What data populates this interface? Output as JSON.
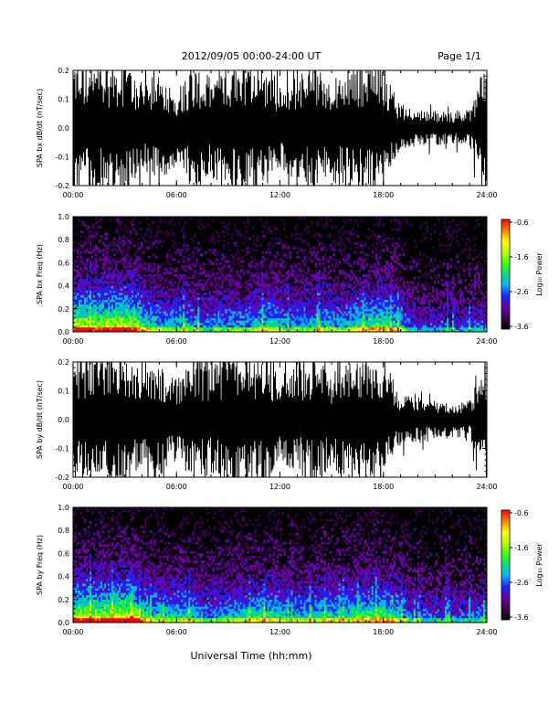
{
  "header": {
    "title": "2012/09/05  00:00-24:00 UT",
    "page": "Page 1/1"
  },
  "x_axis_label": "Universal Time (hh:mm)",
  "colors": {
    "trace": "#000000",
    "spectrogram_background": "#000000",
    "colormap": [
      "#000000",
      "#3a0050",
      "#6a00a8",
      "#2020ff",
      "#00b0ff",
      "#00e080",
      "#40ff00",
      "#c0ff00",
      "#ffff00",
      "#ff8000",
      "#ff0000"
    ]
  },
  "chart_data": [
    {
      "type": "line",
      "ylabel": "SPA bx dB/dt (nT/sec)",
      "xlim": [
        0,
        24
      ],
      "ylim": [
        -0.2,
        0.2
      ],
      "x_ticks": [
        "00:00",
        "06:00",
        "12:00",
        "18:00",
        "24:00"
      ],
      "y_ticks": [
        "-0.2",
        "-0.1",
        "0.0",
        "0.1",
        "0.2"
      ],
      "series": [
        {
          "x": [
            0,
            1,
            2,
            3,
            4,
            5,
            6,
            7,
            8,
            9,
            10,
            11,
            12,
            13,
            14,
            15,
            16,
            17,
            18,
            19,
            20,
            21,
            22,
            23,
            24
          ],
          "envelope": [
            0.2,
            0.2,
            0.2,
            0.2,
            0.15,
            0.17,
            0.12,
            0.2,
            0.16,
            0.2,
            0.2,
            0.2,
            0.13,
            0.17,
            0.2,
            0.15,
            0.2,
            0.2,
            0.2,
            0.07,
            0.06,
            0.055,
            0.05,
            0.06,
            0.2
          ]
        }
      ]
    },
    {
      "type": "heatmap",
      "ylabel": "SPA bx Freq (Hz)",
      "xlim": [
        0,
        24
      ],
      "ylim": [
        0.0,
        1.0
      ],
      "x_ticks": [
        "00:00",
        "06:00",
        "12:00",
        "18:00",
        "24:00"
      ],
      "y_ticks": [
        "0.0",
        "0.2",
        "0.4",
        "0.6",
        "0.8",
        "1.0"
      ],
      "colorbar": {
        "label": "Log₁₀ Power",
        "range": [
          -3.6,
          -0.6
        ],
        "ticks": [
          "-0.6",
          "-1.6",
          "-2.6",
          "-3.6"
        ]
      },
      "hour_activity": [
        0.9,
        0.85,
        0.95,
        0.9,
        0.6,
        0.55,
        0.6,
        0.45,
        0.5,
        0.55,
        0.6,
        0.65,
        0.5,
        0.55,
        0.6,
        0.55,
        0.65,
        0.75,
        0.7,
        0.4,
        0.35,
        0.35,
        0.35,
        0.4
      ]
    },
    {
      "type": "line",
      "ylabel": "SPA by dB/dt (nT/sec)",
      "xlim": [
        0,
        24
      ],
      "ylim": [
        -0.2,
        0.2
      ],
      "x_ticks": [
        "00:00",
        "06:00",
        "12:00",
        "18:00",
        "24:00"
      ],
      "y_ticks": [
        "-0.2",
        "-0.1",
        "0.0",
        "0.1",
        "0.2"
      ],
      "series": [
        {
          "x": [
            0,
            1,
            2,
            3,
            4,
            5,
            6,
            7,
            8,
            9,
            10,
            11,
            12,
            13,
            14,
            15,
            16,
            17,
            18,
            19,
            20,
            21,
            22,
            23,
            24
          ],
          "envelope": [
            0.2,
            0.2,
            0.2,
            0.2,
            0.15,
            0.18,
            0.13,
            0.2,
            0.17,
            0.2,
            0.2,
            0.2,
            0.14,
            0.17,
            0.2,
            0.15,
            0.2,
            0.2,
            0.2,
            0.08,
            0.07,
            0.06,
            0.055,
            0.06,
            0.2
          ]
        }
      ]
    },
    {
      "type": "heatmap",
      "ylabel": "SPA by Freq (Hz)",
      "xlim": [
        0,
        24
      ],
      "ylim": [
        0.0,
        1.0
      ],
      "x_ticks": [
        "00:00",
        "06:00",
        "12:00",
        "18:00",
        "24:00"
      ],
      "y_ticks": [
        "0.0",
        "0.2",
        "0.4",
        "0.6",
        "0.8",
        "1.0"
      ],
      "colorbar": {
        "label": "Log₁₀ Power",
        "range": [
          -3.6,
          -0.6
        ],
        "ticks": [
          "-0.6",
          "-1.6",
          "-2.6",
          "-3.6"
        ]
      },
      "hour_activity": [
        0.9,
        0.9,
        0.95,
        0.9,
        0.65,
        0.6,
        0.65,
        0.5,
        0.55,
        0.6,
        0.65,
        0.7,
        0.55,
        0.6,
        0.65,
        0.6,
        0.7,
        0.75,
        0.7,
        0.45,
        0.4,
        0.4,
        0.4,
        0.45
      ]
    }
  ]
}
